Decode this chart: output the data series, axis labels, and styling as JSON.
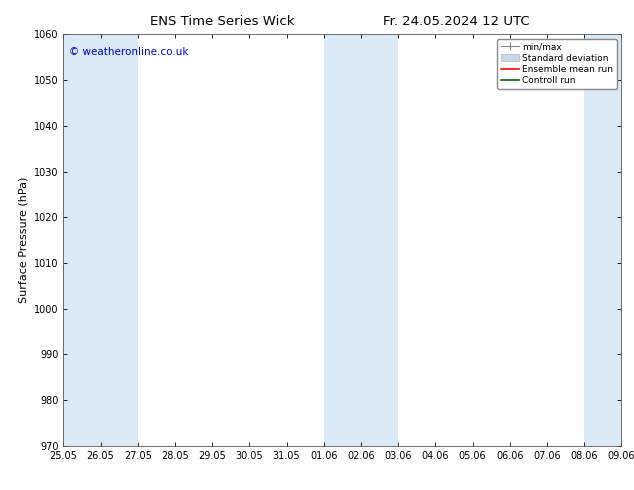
{
  "title_left": "ENS Time Series Wick",
  "title_right": "Fr. 24.05.2024 12 UTC",
  "ylabel": "Surface Pressure (hPa)",
  "ylim": [
    970,
    1060
  ],
  "yticks": [
    970,
    980,
    990,
    1000,
    1010,
    1020,
    1030,
    1040,
    1050,
    1060
  ],
  "xtick_labels": [
    "25.05",
    "26.05",
    "27.05",
    "28.05",
    "29.05",
    "30.05",
    "31.05",
    "01.06",
    "02.06",
    "03.06",
    "04.06",
    "05.06",
    "06.06",
    "07.06",
    "08.06",
    "09.06"
  ],
  "xtick_positions": [
    0,
    1,
    2,
    3,
    4,
    5,
    6,
    7,
    8,
    9,
    10,
    11,
    12,
    13,
    14,
    15
  ],
  "shade_bands": [
    {
      "x_start": 0,
      "x_end": 1,
      "color": "#daeaf7"
    },
    {
      "x_start": 1,
      "x_end": 2,
      "color": "#daeaf7"
    },
    {
      "x_start": 7,
      "x_end": 8,
      "color": "#daeaf7"
    },
    {
      "x_start": 8,
      "x_end": 9,
      "color": "#daeaf7"
    },
    {
      "x_start": 14,
      "x_end": 15,
      "color": "#daeaf7"
    }
  ],
  "legend_entries": [
    {
      "label": "min/max",
      "color": "#999999",
      "linestyle": "-",
      "linewidth": 1
    },
    {
      "label": "Standard deviation",
      "color": "#c0cfe0",
      "linestyle": "-",
      "linewidth": 6
    },
    {
      "label": "Ensemble mean run",
      "color": "#ff0000",
      "linestyle": "-",
      "linewidth": 1.5
    },
    {
      "label": "Controll run",
      "color": "#006600",
      "linestyle": "-",
      "linewidth": 1.5
    }
  ],
  "watermark": "© weatheronline.co.uk",
  "watermark_color": "#0000bb",
  "bg_color": "#ffffff",
  "plot_bg_color": "#ffffff",
  "tick_color": "#000000",
  "font_color": "#000000",
  "border_color": "#555555",
  "x_min": 0,
  "x_max": 15
}
